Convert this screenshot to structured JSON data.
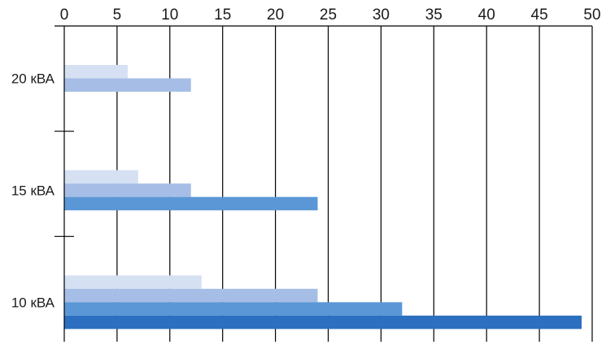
{
  "chart_data": {
    "type": "bar",
    "orientation": "horizontal",
    "categories": [
      "20 кВА",
      "15 кВА",
      "10 кВА"
    ],
    "series": [
      {
        "color": "#d5e0f3",
        "values": [
          6,
          7,
          13
        ]
      },
      {
        "color": "#a6bee6",
        "values": [
          12,
          12,
          24
        ]
      },
      {
        "color": "#5b97d6",
        "values": [
          null,
          24,
          32
        ]
      },
      {
        "color": "#2c6fc0",
        "values": [
          null,
          null,
          49
        ]
      }
    ],
    "x_ticks": [
      0,
      5,
      10,
      15,
      20,
      25,
      30,
      35,
      40,
      45,
      50
    ],
    "xlim": [
      0,
      50
    ],
    "x_axis_position": "top",
    "grid": "vertical",
    "title": "",
    "xlabel": "",
    "ylabel": ""
  }
}
